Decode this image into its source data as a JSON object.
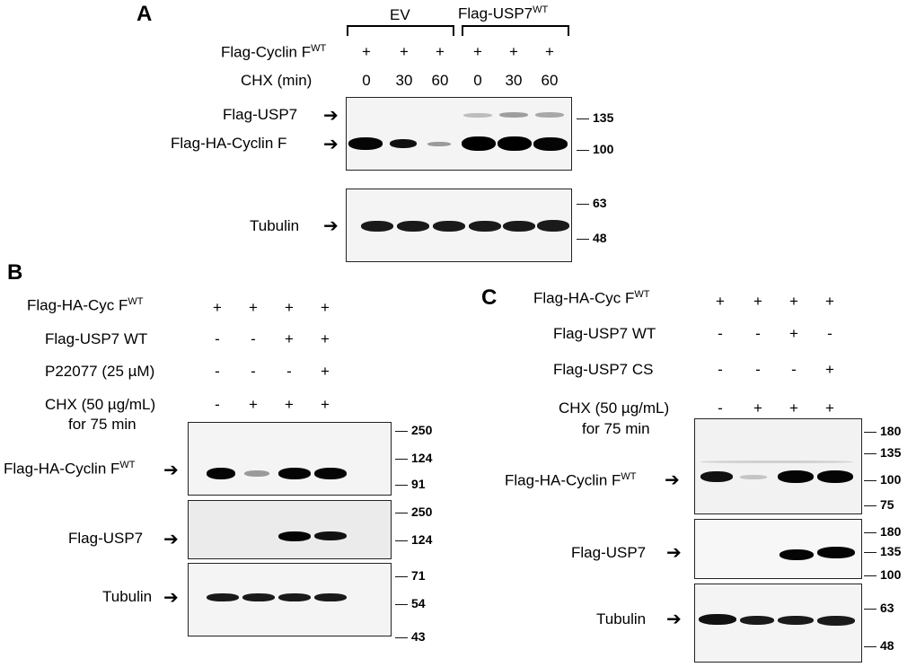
{
  "panelA": {
    "label": "A",
    "group_ev": "EV",
    "group_usp7": "Flag-USP7",
    "group_usp7_sup": "WT",
    "row1_label": "Flag-Cyclin F",
    "row1_sup": "WT",
    "row1_values": [
      "+",
      "+",
      "+",
      "+",
      "+",
      "+"
    ],
    "row2_label": "CHX (min)",
    "row2_values": [
      "0",
      "30",
      "60",
      "0",
      "30",
      "60"
    ],
    "blot1_labels": [
      "Flag-USP7",
      "Flag-HA-Cyclin F"
    ],
    "blot1_markers": [
      "135",
      "100"
    ],
    "blot2_label": "Tubulin",
    "blot2_markers": [
      "63",
      "48"
    ]
  },
  "panelB": {
    "label": "B",
    "row1_label": "Flag-HA-Cyc F",
    "row1_sup": "WT",
    "row1_values": [
      "+",
      "+",
      "+",
      "+"
    ],
    "row2_label": "Flag-USP7 WT",
    "row2_values": [
      "-",
      "-",
      "+",
      "+"
    ],
    "row3_label": "P22077 (25 µM)",
    "row3_values": [
      "-",
      "-",
      "-",
      "+"
    ],
    "row4_label": "CHX (50 µg/mL)",
    "row4_label2": "for 75 min",
    "row4_values": [
      "-",
      "+",
      "+",
      "+"
    ],
    "blot1_label": "Flag-HA-Cyclin F",
    "blot1_sup": "WT",
    "blot1_markers": [
      "250",
      "124",
      "91"
    ],
    "blot2_label": "Flag-USP7",
    "blot2_markers": [
      "250",
      "124"
    ],
    "blot3_label": "Tubulin",
    "blot3_markers": [
      "71",
      "54",
      "43"
    ]
  },
  "panelC": {
    "label": "C",
    "row1_label": "Flag-HA-Cyc F",
    "row1_sup": "WT",
    "row1_values": [
      "+",
      "+",
      "+",
      "+"
    ],
    "row2_label": "Flag-USP7 WT",
    "row2_values": [
      "-",
      "-",
      "+",
      "-"
    ],
    "row3_label": "Flag-USP7 CS",
    "row3_values": [
      "-",
      "-",
      "-",
      "+"
    ],
    "row4_label": "CHX (50 µg/mL)",
    "row4_label2": "for 75 min",
    "row4_values": [
      "-",
      "+",
      "+",
      "+"
    ],
    "blot1_label": "Flag-HA-Cyclin F",
    "blot1_sup": "WT",
    "blot1_markers": [
      "180",
      "135",
      "100",
      "75"
    ],
    "blot2_label": "Flag-USP7",
    "blot2_markers": [
      "180",
      "135",
      "100"
    ],
    "blot3_label": "Tubulin",
    "blot3_markers": [
      "63",
      "48"
    ]
  }
}
